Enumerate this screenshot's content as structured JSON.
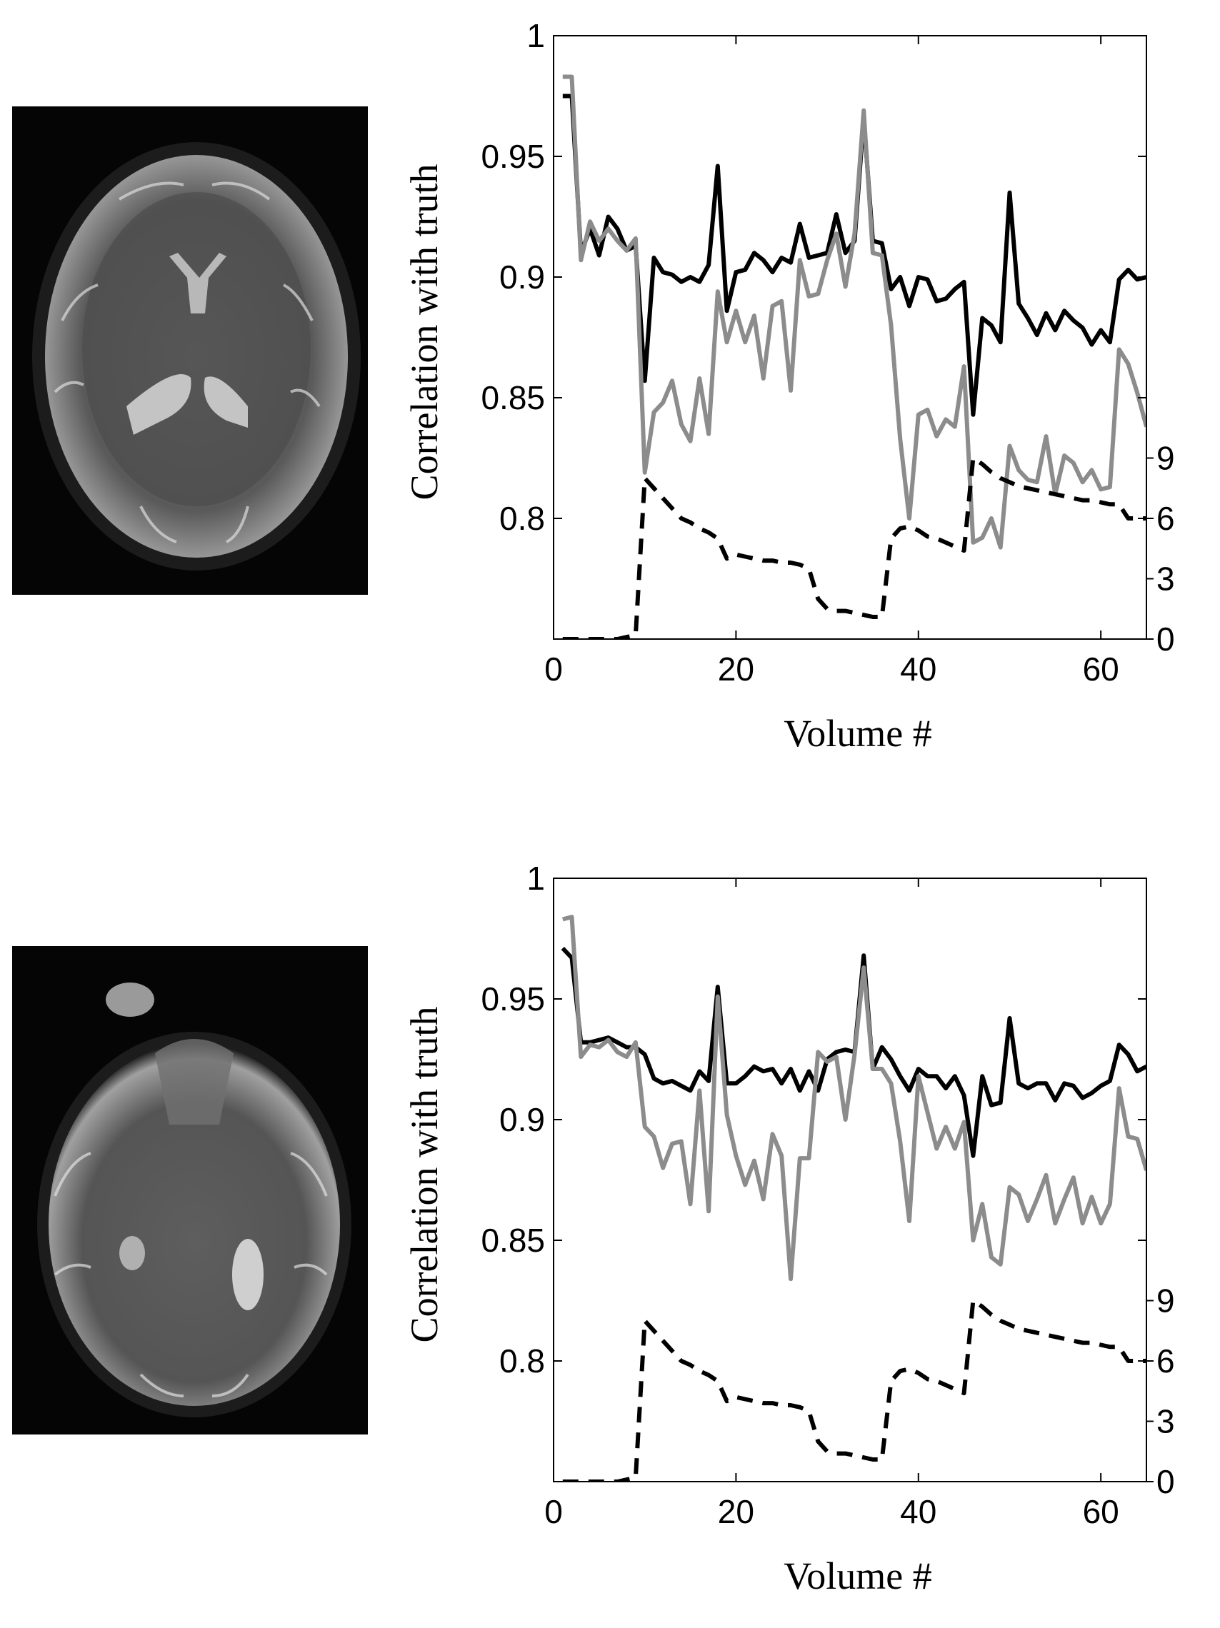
{
  "chart_data": [
    {
      "type": "line",
      "xlabel": "Volume #",
      "ylabel": "Correlation with truth",
      "xlim": [
        0,
        65
      ],
      "ylim": [
        0.75,
        1.0
      ],
      "y2lim": [
        0,
        30
      ],
      "xticks": [
        "0",
        "20",
        "40",
        "60"
      ],
      "yticks": [
        "0.8",
        "0.85",
        "0.9",
        "0.95",
        "1"
      ],
      "y2ticks": [
        "0",
        "3",
        "6",
        "9"
      ],
      "series": [
        {
          "color": "#000000",
          "style": "solid",
          "axis": "left",
          "x": [
            1,
            2,
            3,
            4,
            5,
            6,
            7,
            8,
            9,
            10,
            11,
            12,
            13,
            14,
            15,
            16,
            17,
            18,
            19,
            20,
            21,
            22,
            23,
            24,
            25,
            26,
            27,
            28,
            29,
            30,
            31,
            32,
            33,
            34,
            35,
            36,
            37,
            38,
            39,
            40,
            41,
            42,
            43,
            44,
            45,
            46,
            47,
            48,
            49,
            50,
            51,
            52,
            53,
            54,
            55,
            56,
            57,
            58,
            59,
            60,
            61,
            62,
            63,
            64,
            65
          ],
          "values": [
            0.975,
            0.975,
            0.91,
            0.92,
            0.909,
            0.925,
            0.92,
            0.911,
            0.913,
            0.857,
            0.908,
            0.902,
            0.901,
            0.898,
            0.9,
            0.898,
            0.905,
            0.946,
            0.886,
            0.902,
            0.903,
            0.91,
            0.907,
            0.902,
            0.908,
            0.906,
            0.922,
            0.908,
            0.909,
            0.91,
            0.926,
            0.91,
            0.915,
            0.966,
            0.915,
            0.914,
            0.895,
            0.9,
            0.888,
            0.9,
            0.899,
            0.89,
            0.891,
            0.895,
            0.898,
            0.843,
            0.883,
            0.88,
            0.873,
            0.935,
            0.889,
            0.883,
            0.876,
            0.885,
            0.878,
            0.886,
            0.882,
            0.879,
            0.872,
            0.878,
            0.873,
            0.899,
            0.903,
            0.899,
            0.9
          ]
        },
        {
          "color": "#8c8c8c",
          "style": "solid",
          "axis": "left",
          "x": [
            1,
            2,
            3,
            4,
            5,
            6,
            7,
            8,
            9,
            10,
            11,
            12,
            13,
            14,
            15,
            16,
            17,
            18,
            19,
            20,
            21,
            22,
            23,
            24,
            25,
            26,
            27,
            28,
            29,
            30,
            31,
            32,
            33,
            34,
            35,
            36,
            37,
            38,
            39,
            40,
            41,
            42,
            43,
            44,
            45,
            46,
            47,
            48,
            49,
            50,
            51,
            52,
            53,
            54,
            55,
            56,
            57,
            58,
            59,
            60,
            61,
            62,
            63,
            64,
            65
          ],
          "values": [
            0.983,
            0.983,
            0.907,
            0.923,
            0.915,
            0.92,
            0.915,
            0.911,
            0.916,
            0.819,
            0.844,
            0.848,
            0.857,
            0.839,
            0.832,
            0.858,
            0.835,
            0.894,
            0.873,
            0.886,
            0.873,
            0.884,
            0.858,
            0.888,
            0.89,
            0.853,
            0.907,
            0.892,
            0.893,
            0.907,
            0.918,
            0.896,
            0.918,
            0.969,
            0.91,
            0.909,
            0.88,
            0.833,
            0.8,
            0.843,
            0.845,
            0.834,
            0.841,
            0.838,
            0.863,
            0.79,
            0.792,
            0.8,
            0.788,
            0.83,
            0.82,
            0.816,
            0.815,
            0.834,
            0.81,
            0.826,
            0.823,
            0.815,
            0.82,
            0.812,
            0.813,
            0.87,
            0.864,
            0.852,
            0.838
          ]
        },
        {
          "color": "#000000",
          "style": "dashed",
          "axis": "right",
          "x": [
            1,
            2,
            3,
            4,
            5,
            6,
            7,
            8,
            9,
            10,
            11,
            12,
            13,
            14,
            15,
            16,
            17,
            18,
            19,
            20,
            21,
            22,
            23,
            24,
            25,
            26,
            27,
            28,
            29,
            30,
            31,
            32,
            33,
            34,
            35,
            36,
            37,
            38,
            39,
            40,
            41,
            42,
            43,
            44,
            45,
            46,
            47,
            48,
            49,
            50,
            51,
            52,
            53,
            54,
            55,
            56,
            57,
            58,
            59,
            60,
            61,
            62,
            63,
            64,
            65
          ],
          "values": [
            0,
            0,
            0,
            0,
            0,
            0,
            0,
            0.1,
            0.2,
            8,
            7.5,
            7,
            6.5,
            6,
            5.8,
            5.5,
            5.3,
            5,
            4,
            4.2,
            4.1,
            4,
            3.9,
            3.9,
            3.8,
            3.8,
            3.7,
            3.5,
            2,
            1.5,
            1.4,
            1.4,
            1.3,
            1.2,
            1.1,
            1.1,
            5,
            5.5,
            5.6,
            5.4,
            5.1,
            5,
            4.8,
            4.6,
            4.4,
            9,
            8.7,
            8.3,
            8,
            7.8,
            7.6,
            7.5,
            7.4,
            7.3,
            7.2,
            7.1,
            7,
            6.9,
            6.9,
            6.8,
            6.7,
            6.7,
            6,
            6,
            6
          ]
        }
      ]
    },
    {
      "type": "line",
      "xlabel": "Volume #",
      "ylabel": "Correlation with truth",
      "xlim": [
        0,
        65
      ],
      "ylim": [
        0.75,
        1.0
      ],
      "y2lim": [
        0,
        30
      ],
      "xticks": [
        "0",
        "20",
        "40",
        "60"
      ],
      "yticks": [
        "0.8",
        "0.85",
        "0.9",
        "0.95",
        "1"
      ],
      "y2ticks": [
        "0",
        "3",
        "6",
        "9"
      ],
      "series": [
        {
          "color": "#000000",
          "style": "solid",
          "axis": "left",
          "x": [
            1,
            2,
            3,
            4,
            5,
            6,
            7,
            8,
            9,
            10,
            11,
            12,
            13,
            14,
            15,
            16,
            17,
            18,
            19,
            20,
            21,
            22,
            23,
            24,
            25,
            26,
            27,
            28,
            29,
            30,
            31,
            32,
            33,
            34,
            35,
            36,
            37,
            38,
            39,
            40,
            41,
            42,
            43,
            44,
            45,
            46,
            47,
            48,
            49,
            50,
            51,
            52,
            53,
            54,
            55,
            56,
            57,
            58,
            59,
            60,
            61,
            62,
            63,
            64,
            65
          ],
          "values": [
            0.971,
            0.967,
            0.932,
            0.932,
            0.933,
            0.934,
            0.932,
            0.93,
            0.93,
            0.927,
            0.917,
            0.915,
            0.916,
            0.914,
            0.912,
            0.92,
            0.916,
            0.955,
            0.915,
            0.915,
            0.918,
            0.922,
            0.92,
            0.921,
            0.915,
            0.921,
            0.912,
            0.92,
            0.912,
            0.925,
            0.928,
            0.929,
            0.928,
            0.968,
            0.921,
            0.93,
            0.925,
            0.918,
            0.912,
            0.921,
            0.918,
            0.918,
            0.913,
            0.918,
            0.91,
            0.885,
            0.918,
            0.906,
            0.907,
            0.942,
            0.915,
            0.913,
            0.915,
            0.915,
            0.908,
            0.915,
            0.914,
            0.909,
            0.911,
            0.914,
            0.916,
            0.931,
            0.927,
            0.92,
            0.922
          ]
        },
        {
          "color": "#8c8c8c",
          "style": "solid",
          "axis": "left",
          "x": [
            1,
            2,
            3,
            4,
            5,
            6,
            7,
            8,
            9,
            10,
            11,
            12,
            13,
            14,
            15,
            16,
            17,
            18,
            19,
            20,
            21,
            22,
            23,
            24,
            25,
            26,
            27,
            28,
            29,
            30,
            31,
            32,
            33,
            34,
            35,
            36,
            37,
            38,
            39,
            40,
            41,
            42,
            43,
            44,
            45,
            46,
            47,
            48,
            49,
            50,
            51,
            52,
            53,
            54,
            55,
            56,
            57,
            58,
            59,
            60,
            61,
            62,
            63,
            64,
            65
          ],
          "values": [
            0.983,
            0.984,
            0.926,
            0.931,
            0.93,
            0.933,
            0.928,
            0.926,
            0.932,
            0.897,
            0.893,
            0.88,
            0.89,
            0.891,
            0.865,
            0.912,
            0.862,
            0.951,
            0.902,
            0.885,
            0.873,
            0.883,
            0.867,
            0.894,
            0.885,
            0.834,
            0.884,
            0.884,
            0.928,
            0.924,
            0.926,
            0.9,
            0.927,
            0.963,
            0.921,
            0.921,
            0.915,
            0.891,
            0.858,
            0.918,
            0.903,
            0.888,
            0.897,
            0.888,
            0.899,
            0.85,
            0.865,
            0.843,
            0.84,
            0.872,
            0.869,
            0.858,
            0.867,
            0.877,
            0.857,
            0.867,
            0.876,
            0.857,
            0.868,
            0.857,
            0.865,
            0.913,
            0.893,
            0.892,
            0.879
          ]
        },
        {
          "color": "#000000",
          "style": "dashed",
          "axis": "right",
          "x": [
            1,
            2,
            3,
            4,
            5,
            6,
            7,
            8,
            9,
            10,
            11,
            12,
            13,
            14,
            15,
            16,
            17,
            18,
            19,
            20,
            21,
            22,
            23,
            24,
            25,
            26,
            27,
            28,
            29,
            30,
            31,
            32,
            33,
            34,
            35,
            36,
            37,
            38,
            39,
            40,
            41,
            42,
            43,
            44,
            45,
            46,
            47,
            48,
            49,
            50,
            51,
            52,
            53,
            54,
            55,
            56,
            57,
            58,
            59,
            60,
            61,
            62,
            63,
            64,
            65
          ],
          "values": [
            0,
            0,
            0,
            0,
            0,
            0,
            0,
            0.1,
            0.2,
            8,
            7.5,
            7,
            6.5,
            6,
            5.8,
            5.5,
            5.3,
            5,
            4,
            4.2,
            4.1,
            4,
            3.9,
            3.9,
            3.8,
            3.8,
            3.7,
            3.5,
            2,
            1.5,
            1.4,
            1.4,
            1.3,
            1.2,
            1.1,
            1.1,
            5,
            5.5,
            5.6,
            5.4,
            5.1,
            5,
            4.8,
            4.6,
            4.4,
            9,
            8.7,
            8.3,
            8,
            7.8,
            7.6,
            7.5,
            7.4,
            7.3,
            7.2,
            7.1,
            7,
            6.9,
            6.9,
            6.8,
            6.7,
            6.7,
            6,
            6,
            6
          ]
        }
      ]
    }
  ]
}
